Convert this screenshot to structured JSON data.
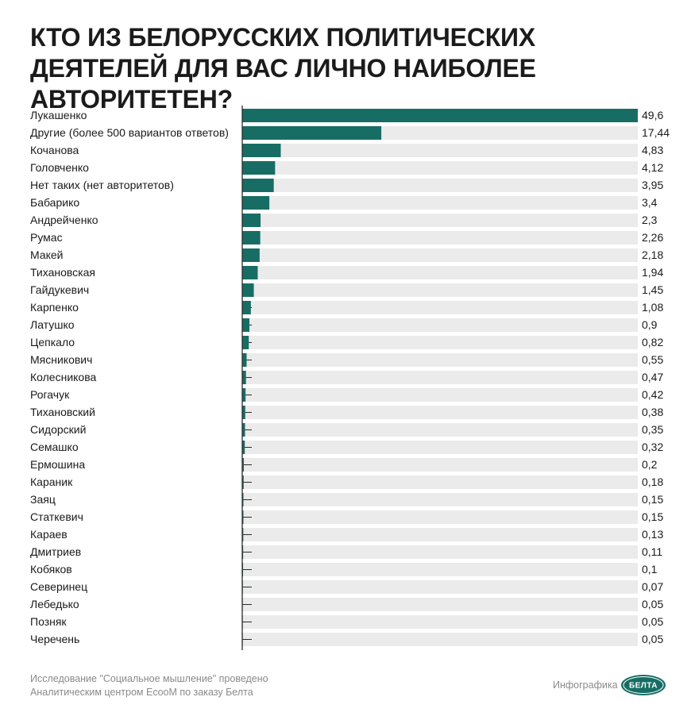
{
  "header": {
    "title": "КТО ИЗ БЕЛОРУССКИХ ПОЛИТИЧЕСКИХ ДЕЯТЕЛЕЙ ДЛЯ ВАС ЛИЧНО НАИБОЛЕЕ АВТОРИТЕТЕН?"
  },
  "colors": {
    "bar": "#176d64",
    "track": "#ebebeb",
    "axis": "#2b2b2b"
  },
  "chart_data": {
    "type": "bar",
    "orientation": "horizontal",
    "title": "КТО ИЗ БЕЛОРУССКИХ ПОЛИТИЧЕСКИХ ДЕЯТЕЛЕЙ ДЛЯ ВАС ЛИЧНО НАИБОЛЕЕ АВТОРИТЕТЕН?",
    "xlim": [
      0,
      49.6
    ],
    "grid": false,
    "legend": "none",
    "categories": [
      "Лукашенко",
      "Другие (более 500 вариантов ответов)",
      "Кочанова",
      "Головченко",
      "Нет таких (нет авторитетов)",
      "Бабарико",
      "Андрейченко",
      "Румас",
      "Макей",
      "Тихановская",
      "Гайдукевич",
      "Карпенко",
      "Латушко",
      "Цепкало",
      "Мясникович",
      "Колесникова",
      "Рогачук",
      "Тихановский",
      "Сидорский",
      "Семашко",
      "Ермошина",
      "Караник",
      "Заяц",
      "Статкевич",
      "Караев",
      "Дмитриев",
      "Кобяков",
      "Северинец",
      "Лебедько",
      "Позняк",
      "Черечень"
    ],
    "values": [
      49.6,
      17.44,
      4.83,
      4.12,
      3.95,
      3.4,
      2.3,
      2.26,
      2.18,
      1.94,
      1.45,
      1.08,
      0.9,
      0.82,
      0.55,
      0.47,
      0.42,
      0.38,
      0.35,
      0.32,
      0.2,
      0.18,
      0.15,
      0.15,
      0.13,
      0.11,
      0.1,
      0.07,
      0.05,
      0.05,
      0.05
    ],
    "value_labels": [
      "49,6",
      "17,44",
      "4,83",
      "4,12",
      "3,95",
      "3,4",
      "2,3",
      "2,26",
      "2,18",
      "1,94",
      "1,45",
      "1,08",
      "0,9",
      "0,82",
      "0,55",
      "0,47",
      "0,42",
      "0,38",
      "0,35",
      "0,32",
      "0,2",
      "0,18",
      "0,15",
      "0,15",
      "0,13",
      "0,11",
      "0,1",
      "0,07",
      "0,05",
      "0,05",
      "0,05"
    ]
  },
  "footer": {
    "note_line1": "Исследование \"Социальное мышление\" проведено",
    "note_line2": "Аналитическим центром EcooM по заказу Белта",
    "credit": "Инфографика",
    "logo_text": "БЕЛТА",
    "logo_color": "#176d64"
  }
}
